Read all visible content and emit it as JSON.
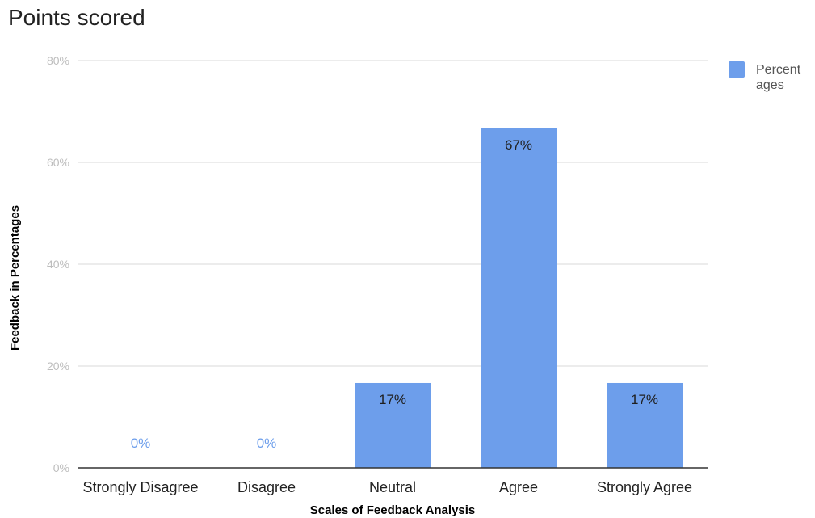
{
  "chart_data": {
    "type": "bar",
    "title": "Points scored",
    "xlabel": "Scales of Feedback Analysis",
    "ylabel": "Feedback in Percentages",
    "categories": [
      "Strongly Disagree",
      "Disagree",
      "Neutral",
      "Agree",
      "Strongly Agree"
    ],
    "series": [
      {
        "name": "Percentages",
        "values": [
          0,
          0,
          16.67,
          66.67,
          16.67
        ],
        "data_labels": [
          "0%",
          "0%",
          "17%",
          "67%",
          "17%"
        ]
      }
    ],
    "yticks": [
      "0%",
      "20%",
      "40%",
      "60%",
      "80%"
    ],
    "ylim": [
      0,
      80
    ],
    "grid": true,
    "legend": {
      "position": "right",
      "lines": [
        "Percent",
        "ages"
      ]
    },
    "colors": {
      "bar": "#6d9eeb",
      "grid": "#d9d9d9",
      "axis": "#333333",
      "zero_label": "#6d9eeb",
      "inside_label": "#1f1f1f"
    }
  }
}
